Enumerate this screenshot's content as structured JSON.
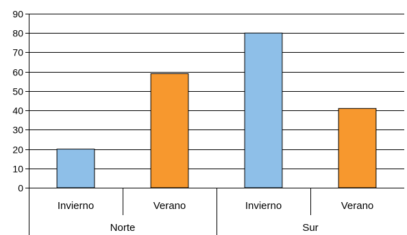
{
  "chart_data": {
    "type": "bar",
    "ylim": [
      0,
      90
    ],
    "yticks": [
      "0",
      "10",
      "20",
      "30",
      "40",
      "50",
      "60",
      "70",
      "80",
      "90"
    ],
    "grid": true,
    "groups": [
      {
        "name": "Norte",
        "bars": [
          {
            "category": "Invierno",
            "value": 20,
            "color": "#8ebfe8"
          },
          {
            "category": "Verano",
            "value": 59,
            "color": "#f7982e"
          }
        ]
      },
      {
        "name": "Sur",
        "bars": [
          {
            "category": "Invierno",
            "value": 80,
            "color": "#8ebfe8"
          },
          {
            "category": "Verano",
            "value": 41,
            "color": "#f7982e"
          }
        ]
      }
    ]
  }
}
